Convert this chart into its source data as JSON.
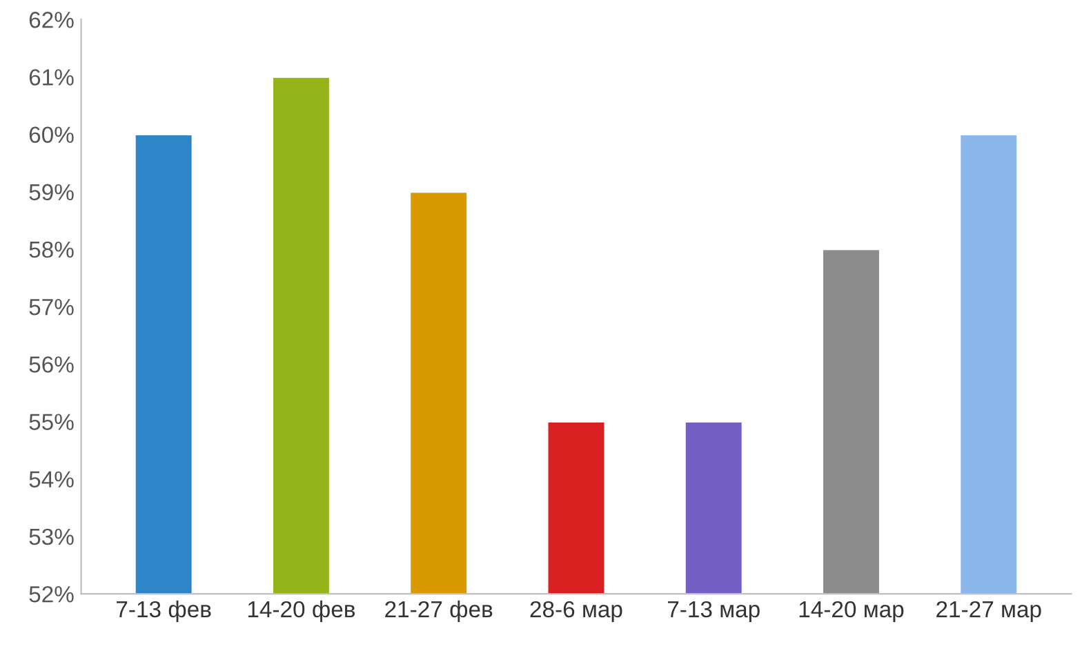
{
  "chart_data": {
    "type": "bar",
    "categories": [
      "7-13 фев",
      "14-20 фев",
      "21-27 фев",
      "28-6 мар",
      "7-13 мар",
      "14-20 мар",
      "21-27 мар"
    ],
    "values": [
      60,
      61,
      59,
      55,
      55,
      58,
      60
    ],
    "colors": [
      "#2e86c8",
      "#94b41a",
      "#d99a00",
      "#d92020",
      "#7460c4",
      "#8c8c8c",
      "#8ab8ea"
    ],
    "ylim": [
      52,
      62
    ],
    "yticks": [
      {
        "value": 52,
        "label": "52%"
      },
      {
        "value": 53,
        "label": "53%"
      },
      {
        "value": 54,
        "label": "54%"
      },
      {
        "value": 55,
        "label": "55%"
      },
      {
        "value": 56,
        "label": "56%"
      },
      {
        "value": 57,
        "label": "57%"
      },
      {
        "value": 58,
        "label": "58%"
      },
      {
        "value": 59,
        "label": "59%"
      },
      {
        "value": 60,
        "label": "60%"
      },
      {
        "value": 61,
        "label": "61%"
      },
      {
        "value": 62,
        "label": "62%"
      }
    ],
    "grid": false,
    "legend": false
  }
}
